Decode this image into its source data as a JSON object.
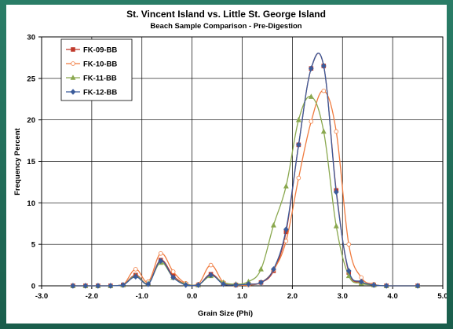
{
  "colors": {
    "frame": "#1f6b57",
    "plot_bg": "#ffffff",
    "grid": "#000000"
  },
  "chart_data": {
    "type": "line",
    "title": "St. Vincent Island vs. Little St. George Island",
    "subtitle": "Beach Sample Comparison - Pre-Digestion",
    "xlabel": "Grain Size (Phi)",
    "ylabel": "Frequency Percent",
    "xlim": [
      -3.0,
      5.0
    ],
    "ylim": [
      0,
      30
    ],
    "x_ticks": [
      -3.0,
      -2.0,
      -1.0,
      0.0,
      1.0,
      2.0,
      3.0,
      4.0,
      5.0
    ],
    "x_tick_labels": [
      "-3.0",
      "-2.0",
      "-1.0",
      "0.0",
      "1.0",
      "2.0",
      "3.0",
      "4.0",
      "5.0"
    ],
    "y_ticks": [
      0,
      5,
      10,
      15,
      20,
      25,
      30
    ],
    "y_tick_labels": [
      "0",
      "5",
      "10",
      "15",
      "20",
      "25",
      "30"
    ],
    "grid": true,
    "legend_position": "top-left",
    "series": [
      {
        "name": "FK-09-BB",
        "color": "#c0392b",
        "marker": "square",
        "x": [
          -2.375,
          -2.125,
          -1.875,
          -1.625,
          -1.375,
          -1.125,
          -0.875,
          -0.625,
          -0.375,
          -0.125,
          0.125,
          0.375,
          0.625,
          0.875,
          1.125,
          1.375,
          1.625,
          1.875,
          2.125,
          2.375,
          2.625,
          2.875,
          3.125,
          3.375,
          3.625,
          3.875,
          4.5
        ],
        "y": [
          0,
          0,
          0,
          0,
          0.1,
          1.3,
          0.3,
          3.1,
          1.2,
          0.2,
          0.1,
          1.4,
          0.3,
          0.1,
          0.2,
          0.4,
          1.8,
          6.5,
          17.0,
          26.2,
          26.5,
          11.5,
          1.6,
          0.4,
          0.1,
          0,
          0
        ]
      },
      {
        "name": "FK-10-BB",
        "color": "#f07b3f",
        "marker": "circle",
        "x": [
          -2.375,
          -2.125,
          -1.875,
          -1.625,
          -1.375,
          -1.125,
          -0.875,
          -0.625,
          -0.375,
          -0.125,
          0.125,
          0.375,
          0.625,
          0.875,
          1.125,
          1.375,
          1.625,
          1.875,
          2.125,
          2.375,
          2.625,
          2.875,
          3.125,
          3.375,
          3.625,
          3.875,
          4.5
        ],
        "y": [
          0,
          0,
          0,
          0,
          0.1,
          2.0,
          0.5,
          3.9,
          1.7,
          0.3,
          0.2,
          2.5,
          0.4,
          0.1,
          0.1,
          0.4,
          1.9,
          5.4,
          13.0,
          19.8,
          23.5,
          18.6,
          5.0,
          1.0,
          0.2,
          0,
          0
        ]
      },
      {
        "name": "FK-11-BB",
        "color": "#8aa84f",
        "marker": "triangle",
        "x": [
          -2.375,
          -2.125,
          -1.875,
          -1.625,
          -1.375,
          -1.125,
          -0.875,
          -0.625,
          -0.375,
          -0.125,
          0.125,
          0.375,
          0.625,
          0.875,
          1.125,
          1.375,
          1.625,
          1.875,
          2.125,
          2.375,
          2.625,
          2.875,
          3.125,
          3.375,
          3.625,
          3.875,
          4.5
        ],
        "y": [
          0,
          0,
          0,
          0,
          0.1,
          1.2,
          0.3,
          2.8,
          1.0,
          0.2,
          0.1,
          1.2,
          0.4,
          0.2,
          0.5,
          2.0,
          7.3,
          12.0,
          20.0,
          22.8,
          18.6,
          7.2,
          1.2,
          0.3,
          0.1,
          0,
          0
        ]
      },
      {
        "name": "FK-12-BB",
        "color": "#3b5b9a",
        "marker": "diamond",
        "x": [
          -2.375,
          -2.125,
          -1.875,
          -1.625,
          -1.375,
          -1.125,
          -0.875,
          -0.625,
          -0.375,
          -0.125,
          0.125,
          0.375,
          0.625,
          0.875,
          1.125,
          1.375,
          1.625,
          1.875,
          2.125,
          2.375,
          2.625,
          2.875,
          3.125,
          3.375,
          3.625,
          3.875,
          4.5
        ],
        "y": [
          0,
          0,
          0,
          0,
          0.1,
          1.1,
          0.2,
          3.0,
          1.0,
          0.1,
          0.1,
          1.3,
          0.2,
          0.1,
          0.2,
          0.4,
          2.0,
          6.8,
          17.0,
          26.2,
          26.5,
          11.3,
          1.8,
          0.5,
          0.1,
          0,
          0
        ]
      }
    ]
  }
}
